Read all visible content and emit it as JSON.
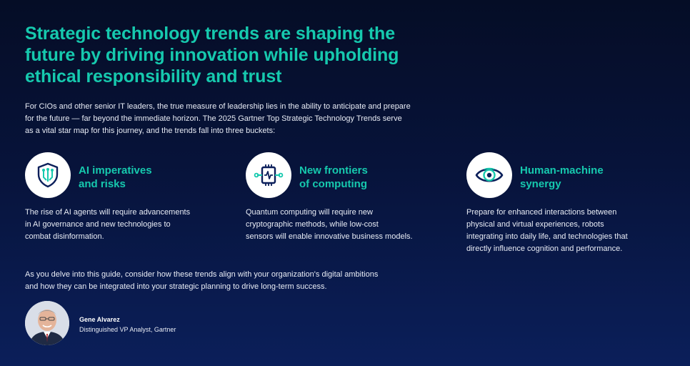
{
  "headline": {
    "line1": "Strategic technology trends are shaping the",
    "line2": "future by driving innovation while upholding",
    "line3": "ethical responsibility and trust"
  },
  "intro": {
    "line1": "For CIOs and other senior IT leaders, the true measure of leadership lies in the ability to anticipate and prepare",
    "line2": "for the future — far beyond the immediate horizon. The 2025 Gartner Top Strategic Technology Trends serve",
    "line3": "as a vital star map for this journey, and the trends fall into three buckets:"
  },
  "trends": [
    {
      "icon": "shield-circuit-icon",
      "title_line1": "AI imperatives",
      "title_line2": "and risks",
      "desc_line1": "The rise of AI agents will require advancements",
      "desc_line2": "in AI governance and new technologies to",
      "desc_line3": "combat disinformation.",
      "desc_line4": ""
    },
    {
      "icon": "chip-circuit-icon",
      "title_line1": "New frontiers",
      "title_line2": "of computing",
      "desc_line1": "Quantum computing will require new",
      "desc_line2": "cryptographic methods, while low-cost",
      "desc_line3": "sensors will enable innovative business models.",
      "desc_line4": ""
    },
    {
      "icon": "eye-icon",
      "title_line1": "Human-machine",
      "title_line2": "synergy",
      "desc_line1": "Prepare for enhanced interactions between",
      "desc_line2": "physical and virtual experiences, robots",
      "desc_line3": "integrating into daily life, and technologies that",
      "desc_line4": "directly influence cognition and performance."
    }
  ],
  "closing": {
    "line1": "As you delve into this guide, consider how these trends align with your organization's digital ambitions",
    "line2": "and how they can be integrated into your strategic planning to drive long-term success."
  },
  "author": {
    "name": "Gene Alvarez",
    "role": "Distinguished VP Analyst, Gartner"
  },
  "colors": {
    "accent": "#16c9ae",
    "icon_navy": "#0b1f5a",
    "background": "#07133a"
  }
}
